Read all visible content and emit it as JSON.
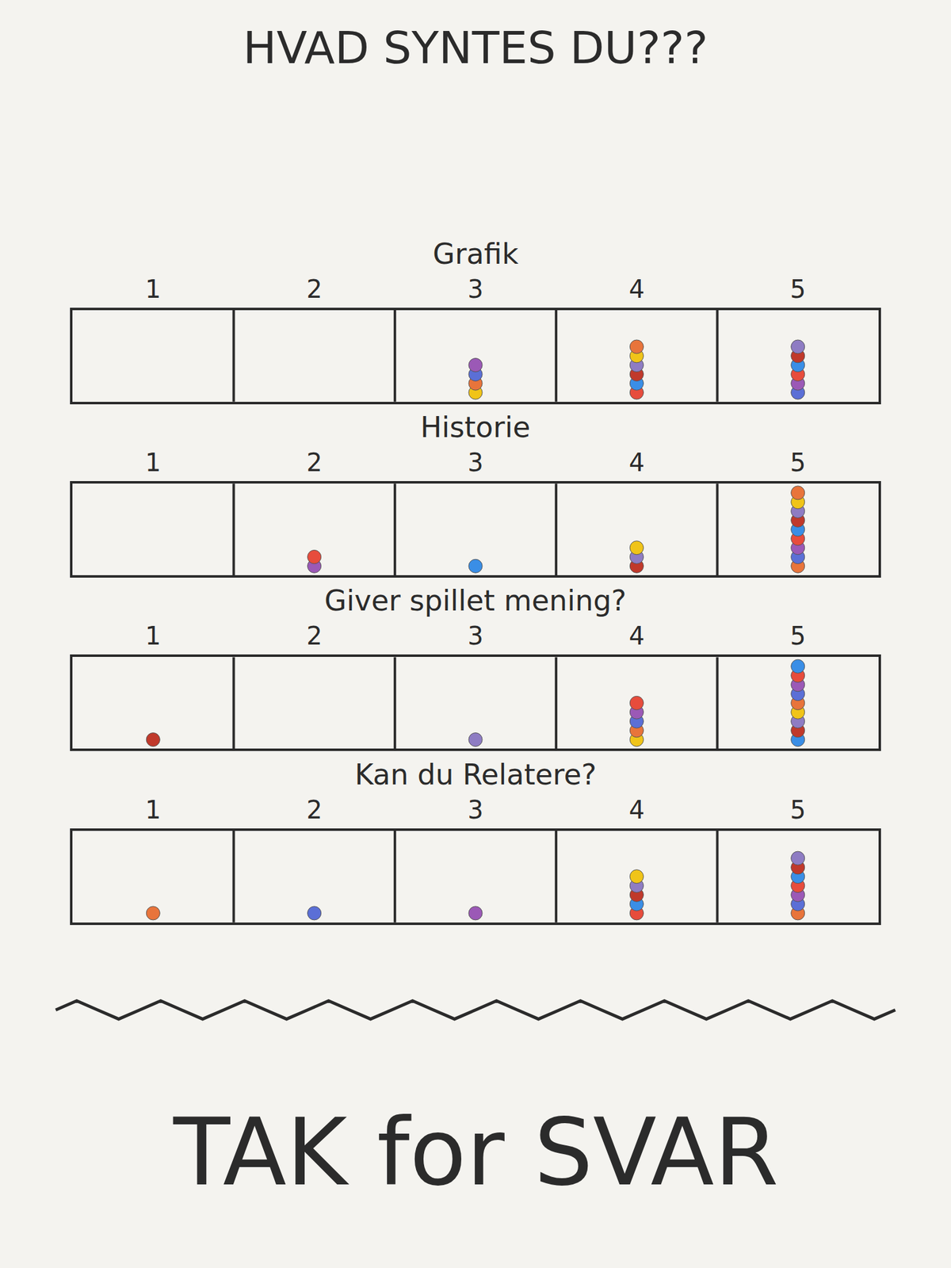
{
  "title": "HVAD SYNTES DU???",
  "footer": "TAK for SVAR",
  "chart_data": [
    {
      "type": "dot",
      "title": "Grafik",
      "categories": [
        "1",
        "2",
        "3",
        "4",
        "5"
      ],
      "values": [
        0,
        0,
        4,
        6,
        6
      ],
      "ylim": [
        0,
        10
      ],
      "tick_labels": "x"
    },
    {
      "type": "dot",
      "title": "Historie",
      "categories": [
        "1",
        "2",
        "3",
        "4",
        "5"
      ],
      "values": [
        0,
        2,
        1,
        3,
        9
      ],
      "ylim": [
        0,
        10
      ],
      "tick_labels": "x"
    },
    {
      "type": "dot",
      "title": "Giver spillet mening?",
      "categories": [
        "1",
        "2",
        "3",
        "4",
        "5"
      ],
      "values": [
        1,
        0,
        1,
        5,
        9
      ],
      "ylim": [
        0,
        10
      ],
      "tick_labels": "x"
    },
    {
      "type": "dot",
      "title": "Kan du Relatere?",
      "categories": [
        "1",
        "2",
        "3",
        "4",
        "5"
      ],
      "values": [
        1,
        1,
        1,
        5,
        7
      ],
      "ylim": [
        0,
        10
      ],
      "tick_labels": "x"
    }
  ]
}
